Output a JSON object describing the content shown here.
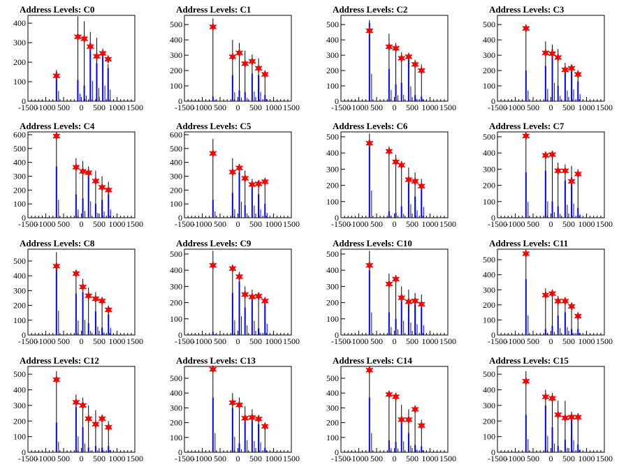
{
  "chart_data": [
    {
      "type": "bar",
      "title": "Address Levels: C0",
      "xlim": [
        -1500,
        1500
      ],
      "ylim": [
        0,
        440
      ],
      "yticks": [
        0,
        100,
        200,
        300,
        400
      ],
      "xtick_labels": [
        "-1500",
        "-1000",
        "500",
        "0",
        "500",
        "1000",
        "1500"
      ],
      "x": [
        -700,
        -100,
        80,
        250,
        430,
        600,
        750
      ],
      "heights": [
        160,
        435,
        410,
        355,
        325,
        270,
        190
      ],
      "blue": [
        150,
        110,
        80,
        300,
        195,
        230,
        170
      ],
      "peaks": [
        130,
        330,
        320,
        280,
        230,
        245,
        215
      ]
    },
    {
      "type": "bar",
      "title": "Address Levels: C1",
      "xlim": [
        -1500,
        1500
      ],
      "ylim": [
        0,
        560
      ],
      "yticks": [
        0,
        100,
        200,
        300,
        400,
        500
      ],
      "xtick_labels": [
        "-1500",
        "-1000",
        "500",
        "0",
        "500",
        "1000",
        "1500"
      ],
      "x": [
        -700,
        -150,
        40,
        200,
        400,
        580,
        760
      ],
      "heights": [
        540,
        400,
        380,
        330,
        305,
        280,
        200
      ],
      "blue": [
        30,
        170,
        70,
        60,
        180,
        170,
        40
      ],
      "peaks": [
        485,
        290,
        315,
        245,
        260,
        215,
        175
      ]
    },
    {
      "type": "bar",
      "title": "Address Levels: C2",
      "xlim": [
        -1500,
        1500
      ],
      "ylim": [
        0,
        560
      ],
      "yticks": [
        0,
        100,
        200,
        300,
        400,
        500
      ],
      "xtick_labels": [
        "-1500",
        "-1000",
        "500",
        "0",
        "500",
        "1000",
        "1500"
      ],
      "x": [
        -700,
        -150,
        40,
        200,
        400,
        580,
        760
      ],
      "heights": [
        530,
        440,
        380,
        320,
        310,
        270,
        240
      ],
      "blue": [
        510,
        210,
        110,
        120,
        280,
        40,
        30
      ],
      "peaks": [
        460,
        355,
        345,
        280,
        290,
        240,
        200
      ]
    },
    {
      "type": "bar",
      "title": "Address Levels: C3",
      "xlim": [
        -1500,
        1500
      ],
      "ylim": [
        0,
        560
      ],
      "yticks": [
        0,
        100,
        200,
        300,
        400,
        500
      ],
      "xtick_labels": [
        "-1500",
        "-1000",
        "500",
        "0",
        "500",
        "1000",
        "1500"
      ],
      "x": [
        -700,
        -150,
        40,
        200,
        400,
        580,
        760
      ],
      "heights": [
        500,
        390,
        370,
        340,
        250,
        230,
        200
      ],
      "blue": [
        200,
        230,
        340,
        100,
        200,
        220,
        130
      ],
      "peaks": [
        475,
        315,
        310,
        285,
        205,
        215,
        175
      ]
    },
    {
      "type": "bar",
      "title": "Address Levels: C4",
      "xlim": [
        -1500,
        1500
      ],
      "ylim": [
        0,
        620
      ],
      "yticks": [
        0,
        100,
        200,
        300,
        400,
        500,
        600
      ],
      "xtick_labels": [
        "-1500",
        "-1000",
        "500",
        "0",
        "500",
        "1000",
        "1500"
      ],
      "x": [
        -700,
        -150,
        40,
        200,
        400,
        580,
        760
      ],
      "heights": [
        620,
        430,
        410,
        370,
        340,
        300,
        260
      ],
      "blue": [
        370,
        170,
        140,
        340,
        100,
        130,
        170
      ],
      "peaks": [
        590,
        365,
        335,
        325,
        265,
        220,
        200
      ]
    },
    {
      "type": "bar",
      "title": "Address Levels: C5",
      "xlim": [
        -1500,
        1500
      ],
      "ylim": [
        0,
        620
      ],
      "yticks": [
        0,
        100,
        200,
        300,
        400,
        500,
        600
      ],
      "xtick_labels": [
        "-1500",
        "-1000",
        "500",
        "0",
        "500",
        "1000",
        "1500"
      ],
      "x": [
        -700,
        -150,
        40,
        200,
        400,
        580,
        760
      ],
      "heights": [
        570,
        430,
        380,
        340,
        280,
        265,
        280
      ],
      "blue": [
        130,
        180,
        330,
        90,
        250,
        170,
        100
      ],
      "peaks": [
        465,
        330,
        360,
        285,
        240,
        245,
        260
      ]
    },
    {
      "type": "bar",
      "title": "Address Levels: C6",
      "xlim": [
        -1500,
        1500
      ],
      "ylim": [
        0,
        530
      ],
      "yticks": [
        0,
        100,
        200,
        300,
        400,
        500
      ],
      "xtick_labels": [
        "-1500",
        "-1000",
        "500",
        "0",
        "500",
        "1000",
        "1500"
      ],
      "x": [
        -700,
        -150,
        40,
        200,
        400,
        580,
        760
      ],
      "heights": [
        520,
        440,
        390,
        350,
        310,
        280,
        240
      ],
      "blue": [
        480,
        40,
        30,
        70,
        240,
        130,
        190
      ],
      "peaks": [
        460,
        410,
        345,
        325,
        235,
        225,
        195
      ]
    },
    {
      "type": "bar",
      "title": "Address Levels: C7",
      "xlim": [
        -1500,
        1500
      ],
      "ylim": [
        0,
        530
      ],
      "yticks": [
        0,
        100,
        200,
        300,
        400,
        500
      ],
      "xtick_labels": [
        "-1500",
        "-1000",
        "500",
        "0",
        "500",
        "1000",
        "1500"
      ],
      "x": [
        -700,
        -150,
        40,
        200,
        400,
        580,
        760
      ],
      "heights": [
        530,
        390,
        390,
        340,
        330,
        320,
        300
      ],
      "blue": [
        280,
        290,
        100,
        70,
        230,
        250,
        60
      ],
      "peaks": [
        505,
        385,
        390,
        290,
        290,
        225,
        270
      ]
    },
    {
      "type": "bar",
      "title": "Address Levels: C8",
      "xlim": [
        -1500,
        1500
      ],
      "ylim": [
        0,
        580
      ],
      "yticks": [
        0,
        100,
        200,
        300,
        400,
        500
      ],
      "xtick_labels": [
        "-1500",
        "-1000",
        "500",
        "0",
        "500",
        "1000",
        "1500"
      ],
      "x": [
        -700,
        -150,
        40,
        200,
        400,
        580,
        760
      ],
      "heights": [
        560,
        400,
        380,
        320,
        290,
        240,
        200
      ],
      "blue": [
        470,
        280,
        290,
        80,
        160,
        50,
        140
      ],
      "peaks": [
        465,
        415,
        325,
        265,
        245,
        230,
        170
      ]
    },
    {
      "type": "bar",
      "title": "Address Levels: C9",
      "xlim": [
        -1500,
        1500
      ],
      "ylim": [
        0,
        530
      ],
      "yticks": [
        0,
        100,
        200,
        300,
        400,
        500
      ],
      "xtick_labels": [
        "-1500",
        "-1000",
        "500",
        "0",
        "500",
        "1000",
        "1500"
      ],
      "x": [
        -700,
        -150,
        40,
        200,
        400,
        580,
        760
      ],
      "heights": [
        520,
        410,
        390,
        300,
        280,
        250,
        220
      ],
      "blue": [
        20,
        260,
        330,
        170,
        250,
        40,
        200
      ],
      "peaks": [
        430,
        410,
        360,
        250,
        235,
        240,
        210
      ]
    },
    {
      "type": "bar",
      "title": "Address Levels: C10",
      "xlim": [
        -1500,
        1500
      ],
      "ylim": [
        0,
        530
      ],
      "yticks": [
        0,
        100,
        200,
        300,
        400,
        500
      ],
      "xtick_labels": [
        "-1500",
        "-1000",
        "500",
        "0",
        "500",
        "1000",
        "1500"
      ],
      "x": [
        -700,
        -150,
        40,
        200,
        400,
        580,
        760
      ],
      "heights": [
        520,
        380,
        360,
        300,
        280,
        260,
        250
      ],
      "blue": [
        400,
        140,
        100,
        250,
        220,
        190,
        170
      ],
      "peaks": [
        430,
        315,
        345,
        230,
        205,
        210,
        190
      ]
    },
    {
      "type": "bar",
      "title": "Address Levels: C11",
      "xlim": [
        -1500,
        1500
      ],
      "ylim": [
        0,
        570
      ],
      "yticks": [
        0,
        100,
        200,
        300,
        400,
        500
      ],
      "xtick_labels": [
        "-1500",
        "-1000",
        "500",
        "0",
        "500",
        "1000",
        "1500"
      ],
      "x": [
        -700,
        -150,
        40,
        200,
        400,
        580,
        760
      ],
      "heights": [
        560,
        310,
        290,
        260,
        250,
        200,
        150
      ],
      "blue": [
        370,
        40,
        60,
        130,
        150,
        40,
        40
      ],
      "peaks": [
        540,
        265,
        275,
        225,
        225,
        190,
        125
      ]
    },
    {
      "type": "bar",
      "title": "Address Levels: C12",
      "xlim": [
        -1500,
        1500
      ],
      "ylim": [
        0,
        550
      ],
      "yticks": [
        0,
        100,
        200,
        300,
        400,
        500
      ],
      "xtick_labels": [
        "-1500",
        "-1000",
        "500",
        "0",
        "500",
        "1000",
        "1500"
      ],
      "x": [
        -700,
        -150,
        40,
        200,
        400,
        580,
        760
      ],
      "heights": [
        520,
        370,
        350,
        300,
        270,
        240,
        200
      ],
      "blue": [
        190,
        290,
        160,
        30,
        40,
        30,
        40
      ],
      "peaks": [
        465,
        320,
        300,
        215,
        180,
        215,
        160
      ]
    },
    {
      "type": "bar",
      "title": "Address Levels: C13",
      "xlim": [
        -1500,
        1500
      ],
      "ylim": [
        0,
        580
      ],
      "yticks": [
        0,
        100,
        200,
        300,
        400,
        500
      ],
      "xtick_labels": [
        "-1500",
        "-1000",
        "500",
        "0",
        "500",
        "1000",
        "1500"
      ],
      "x": [
        -700,
        -150,
        40,
        200,
        400,
        580,
        760
      ],
      "heights": [
        570,
        400,
        370,
        310,
        290,
        250,
        200
      ],
      "blue": [
        370,
        300,
        60,
        230,
        220,
        190,
        30
      ],
      "peaks": [
        560,
        335,
        320,
        230,
        235,
        225,
        175
      ]
    },
    {
      "type": "bar",
      "title": "Address Levels: C14",
      "xlim": [
        -1500,
        1500
      ],
      "ylim": [
        0,
        580
      ],
      "yticks": [
        0,
        100,
        200,
        300,
        400,
        500
      ],
      "xtick_labels": [
        "-1500",
        "-1000",
        "500",
        "0",
        "500",
        "1000",
        "1500"
      ],
      "x": [
        -700,
        -150,
        40,
        200,
        400,
        580,
        760
      ],
      "heights": [
        570,
        400,
        390,
        320,
        290,
        300,
        220
      ],
      "blue": [
        370,
        80,
        70,
        210,
        130,
        50,
        40
      ],
      "peaks": [
        555,
        390,
        375,
        220,
        220,
        290,
        180
      ]
    },
    {
      "type": "bar",
      "title": "Address Levels: C15",
      "xlim": [
        -1500,
        1500
      ],
      "ylim": [
        0,
        550
      ],
      "yticks": [
        0,
        100,
        200,
        300,
        400,
        500
      ],
      "xtick_labels": [
        "-1500",
        "-1000",
        "500",
        "0",
        "500",
        "1000",
        "1500"
      ],
      "x": [
        -700,
        -150,
        40,
        200,
        400,
        580,
        760
      ],
      "heights": [
        520,
        400,
        380,
        330,
        330,
        260,
        250
      ],
      "blue": [
        240,
        300,
        160,
        40,
        80,
        220,
        50
      ],
      "peaks": [
        455,
        355,
        345,
        240,
        220,
        225,
        225
      ]
    }
  ]
}
